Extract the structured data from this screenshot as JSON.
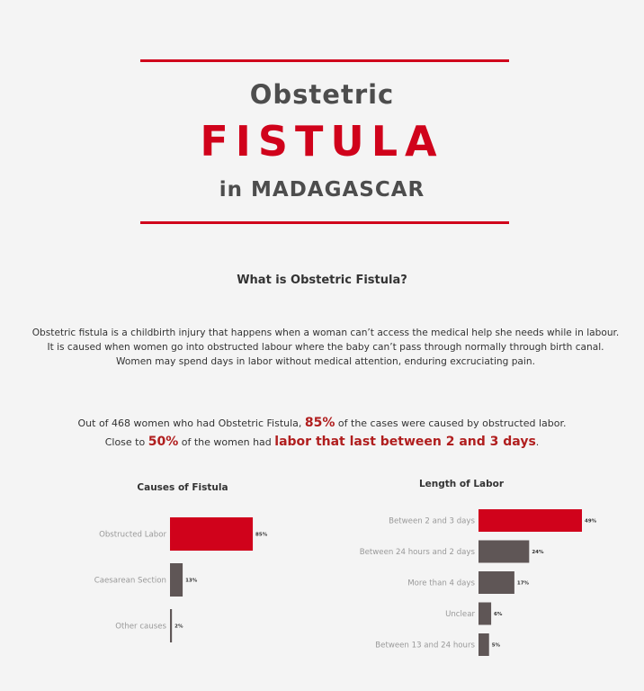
{
  "header": {
    "line1": "Obstetric",
    "line2": "FISTULA",
    "line3": "in MADAGASCAR"
  },
  "intro": {
    "question": "What is Obstetric Fistula?",
    "paragraph": "Obstetric fistula is a childbirth injury that happens when a woman can’t access the medical help she needs while in labour. It is caused when women go into obstructed labour where the baby can’t pass through normally through birth canal. Women may spend days in labor without medical attention, enduring excruciating pain."
  },
  "stats": {
    "s1_pre": "Out of 468 women who had Obstetric Fistula,",
    "s1_highlight": "85%",
    "s1_post": "of the cases were caused by obstructed labor.",
    "s2_pre": "Close to",
    "s2_highlight": "50%",
    "s2_mid": "of the women had",
    "s2_highlight2": "labor that last between 2 and 3 days",
    "s2_post": "."
  },
  "colors": {
    "accent": "#d0021b",
    "bar_gray": "#5f5656",
    "text_dark": "#333333",
    "highlight": "#b01e1e"
  },
  "chart_data": [
    {
      "type": "bar",
      "orientation": "horizontal",
      "title": "Causes of Fistula",
      "categories": [
        "Obstructed Labor",
        "Caesarean Section",
        "Other causes"
      ],
      "values": [
        85,
        13,
        2
      ],
      "value_labels": [
        "85%",
        "13%",
        "2%"
      ],
      "highlight_index": 0
    },
    {
      "type": "bar",
      "orientation": "horizontal",
      "title": "Length of Labor",
      "categories": [
        "Between 2 and 3 days",
        "Between 24 hours and 2 days",
        "More than 4 days",
        "Unclear",
        "Between 13 and 24 hours"
      ],
      "values": [
        49,
        24,
        17,
        6,
        5
      ],
      "value_labels": [
        "49%",
        "24%",
        "17%",
        "6%",
        "5%"
      ],
      "highlight_index": 0
    }
  ]
}
